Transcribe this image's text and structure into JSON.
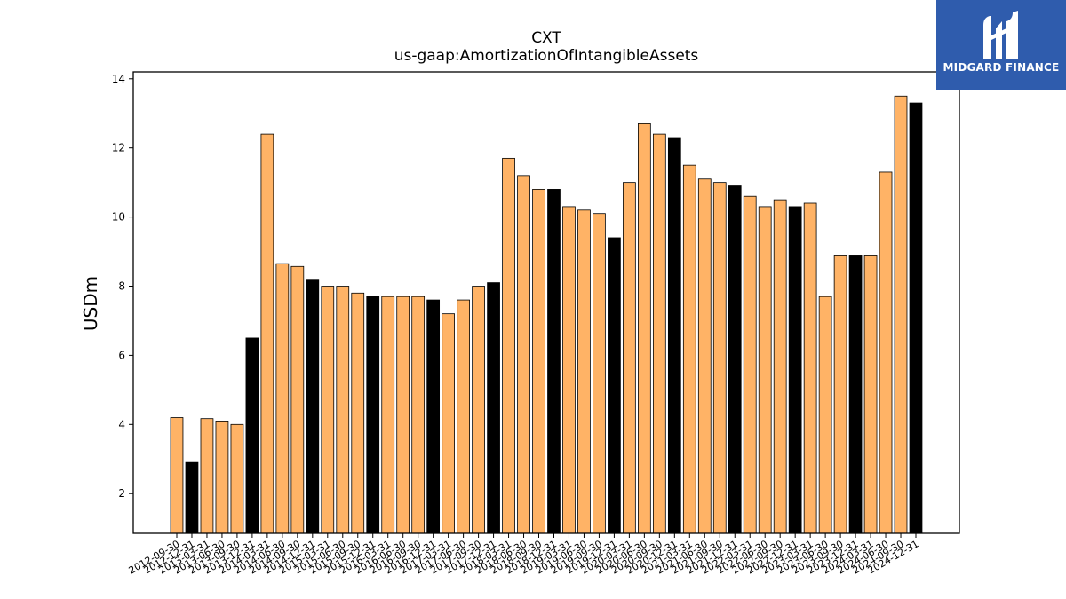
{
  "chart_data": {
    "type": "bar",
    "title": "CXT",
    "subtitle": "us-gaap:AmortizationOfIntangibleAssets",
    "xlabel": "",
    "ylabel": "USDm",
    "ylim": [
      0.85,
      14.2
    ],
    "yticks": [
      2,
      4,
      6,
      8,
      10,
      12,
      14
    ],
    "grid": false,
    "categories": [
      "2012-09-30",
      "2012-12-31",
      "2013-03-31",
      "2013-06-30",
      "2013-09-30",
      "2013-12-31",
      "2014-03-31",
      "2014-06-30",
      "2014-09-30",
      "2014-12-31",
      "2015-03-31",
      "2015-06-30",
      "2015-09-30",
      "2015-12-31",
      "2016-03-31",
      "2016-06-30",
      "2016-09-30",
      "2016-12-31",
      "2017-03-31",
      "2017-06-30",
      "2017-09-30",
      "2017-12-31",
      "2018-03-31",
      "2018-06-30",
      "2018-09-30",
      "2018-12-31",
      "2019-03-31",
      "2019-06-30",
      "2019-09-30",
      "2019-12-31",
      "2020-03-31",
      "2020-06-30",
      "2020-09-30",
      "2020-12-31",
      "2021-03-31",
      "2021-06-30",
      "2021-09-30",
      "2021-12-31",
      "2022-03-31",
      "2022-06-30",
      "2022-09-30",
      "2022-12-31",
      "2023-03-31",
      "2023-06-30",
      "2023-09-30",
      "2023-12-31",
      "2024-03-31",
      "2024-06-30",
      "2024-09-30",
      "2024-12-31"
    ],
    "values": [
      4.2,
      2.9,
      4.17,
      4.1,
      4.0,
      6.5,
      12.4,
      8.65,
      8.57,
      8.2,
      8.0,
      8.0,
      7.8,
      7.7,
      7.7,
      7.7,
      7.7,
      7.6,
      7.2,
      7.6,
      8.0,
      8.1,
      11.7,
      11.2,
      10.8,
      10.8,
      10.3,
      10.2,
      10.1,
      9.4,
      11.0,
      12.7,
      12.4,
      12.3,
      11.5,
      11.1,
      11.0,
      10.9,
      10.6,
      10.3,
      10.5,
      10.3,
      10.4,
      7.7,
      8.9,
      8.9,
      8.9,
      11.3,
      13.5,
      13.3
    ],
    "bar_colors": [
      "#ffb366",
      "#000000",
      "#ffb366",
      "#ffb366",
      "#ffb366",
      "#000000",
      "#ffb366",
      "#ffb366",
      "#ffb366",
      "#000000",
      "#ffb366",
      "#ffb366",
      "#ffb366",
      "#000000",
      "#ffb366",
      "#ffb366",
      "#ffb366",
      "#000000",
      "#ffb366",
      "#ffb366",
      "#ffb366",
      "#000000",
      "#ffb366",
      "#ffb366",
      "#ffb366",
      "#000000",
      "#ffb366",
      "#ffb366",
      "#ffb366",
      "#000000",
      "#ffb366",
      "#ffb366",
      "#ffb366",
      "#000000",
      "#ffb366",
      "#ffb366",
      "#ffb366",
      "#000000",
      "#ffb366",
      "#ffb366",
      "#ffb366",
      "#000000",
      "#ffb366",
      "#ffb366",
      "#ffb366",
      "#000000",
      "#ffb366",
      "#ffb366",
      "#ffb366",
      "#000000"
    ]
  },
  "logo": {
    "text": "MIDGARD FINANCE",
    "background": "#2f5cad"
  }
}
